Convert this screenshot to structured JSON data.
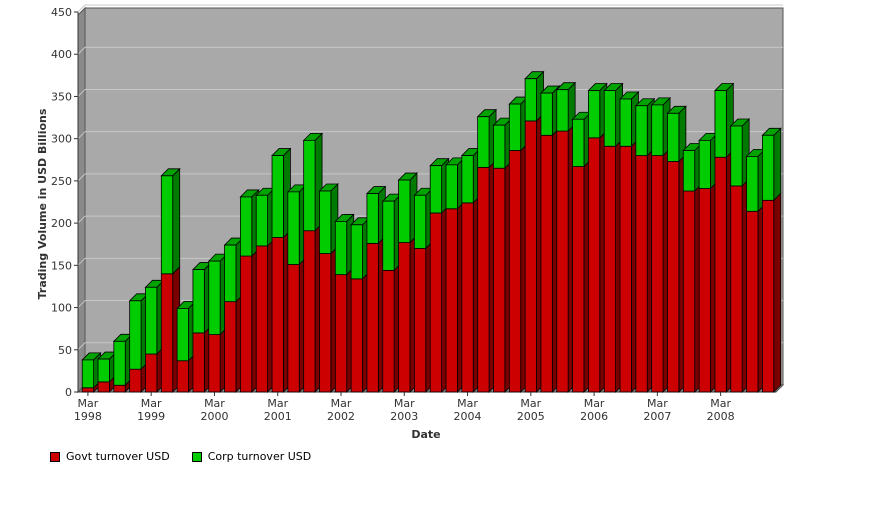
{
  "chart_data": {
    "type": "bar",
    "stacked": true,
    "style": "3d",
    "xlabel": "Date",
    "ylabel": "Trading Volume in USD Billions",
    "ylim": [
      0,
      450
    ],
    "yticks": [
      0,
      50,
      100,
      150,
      200,
      250,
      300,
      350,
      400,
      450
    ],
    "grid": true,
    "legend_position": "bottom-left",
    "x_tick_labels": [
      {
        "index": 0,
        "month": "Mar",
        "year": "1998"
      },
      {
        "index": 4,
        "month": "Mar",
        "year": "1999"
      },
      {
        "index": 8,
        "month": "Mar",
        "year": "2000"
      },
      {
        "index": 12,
        "month": "Mar",
        "year": "2001"
      },
      {
        "index": 16,
        "month": "Mar",
        "year": "2002"
      },
      {
        "index": 20,
        "month": "Mar",
        "year": "2003"
      },
      {
        "index": 24,
        "month": "Mar",
        "year": "2004"
      },
      {
        "index": 28,
        "month": "Mar",
        "year": "2005"
      },
      {
        "index": 32,
        "month": "Mar",
        "year": "2006"
      },
      {
        "index": 36,
        "month": "Mar",
        "year": "2007"
      },
      {
        "index": 40,
        "month": "Mar",
        "year": "2008"
      }
    ],
    "series": [
      {
        "name": "Govt turnover USD",
        "color": "#cc0000",
        "values": [
          5,
          12,
          8,
          27,
          45,
          140,
          37,
          70,
          68,
          107,
          161,
          173,
          183,
          151,
          191,
          164,
          139,
          134,
          176,
          144,
          177,
          170,
          212,
          217,
          224,
          266,
          265,
          286,
          321,
          304,
          309,
          267,
          301,
          291,
          291,
          280,
          280,
          273,
          238,
          241,
          278,
          244,
          214,
          227
        ]
      },
      {
        "name": "Corp turnover USD",
        "color": "#00cc00",
        "values": [
          33,
          27,
          52,
          81,
          79,
          116,
          62,
          75,
          87,
          67,
          70,
          60,
          97,
          86,
          107,
          74,
          63,
          64,
          59,
          82,
          74,
          63,
          56,
          52,
          56,
          60,
          51,
          55,
          50,
          50,
          49,
          56,
          56,
          66,
          56,
          59,
          60,
          57,
          48,
          57,
          79,
          71,
          65,
          77
        ]
      }
    ]
  }
}
